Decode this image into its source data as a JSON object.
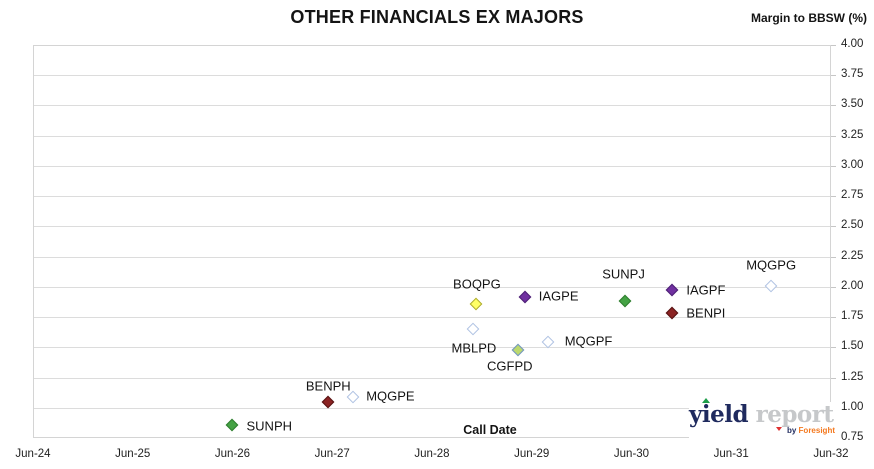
{
  "title": "OTHER FINANCIALS EX MAJORS",
  "chart_data": {
    "type": "scatter",
    "title": "OTHER FINANCIALS EX MAJORS",
    "x_axis": {
      "title": "Call Date",
      "tick_labels": [
        "Jun-24",
        "Jun-25",
        "Jun-26",
        "Jun-27",
        "Jun-28",
        "Jun-29",
        "Jun-30",
        "Jun-31",
        "Jun-32"
      ],
      "range_years": [
        0,
        8
      ]
    },
    "y_axis": {
      "title": "Margin to BBSW (%)",
      "tick_labels": [
        "4.00",
        "3.75",
        "3.50",
        "3.25",
        "3.00",
        "2.75",
        "2.50",
        "2.25",
        "2.00",
        "1.75",
        "1.50",
        "1.25",
        "1.00",
        "0.75"
      ],
      "range": [
        0.75,
        4.0
      ],
      "grid": "horizontal-only",
      "side": "right"
    },
    "series": [
      {
        "label": "SUNPH",
        "call_date_est": "Jun-26",
        "x_years": 1.99,
        "margin_pct": 0.86,
        "marker": {
          "style": "filled",
          "fill": "#44A244",
          "stroke": "#2E7D2E",
          "stroke_w": 1
        },
        "label_pos": {
          "anchor": "left",
          "dx": 15,
          "dy": 1
        }
      },
      {
        "label": "BENPH",
        "call_date_est": "Jun-27",
        "x_years": 2.96,
        "margin_pct": 1.05,
        "marker": {
          "style": "filled",
          "fill": "#8B2323",
          "stroke": "#541212",
          "stroke_w": 1
        },
        "label_pos": {
          "anchor": "center",
          "dx": 0,
          "dy": -16
        }
      },
      {
        "label": "MQGPE",
        "call_date_est": "Sep-27",
        "x_years": 3.21,
        "margin_pct": 1.09,
        "marker": {
          "style": "open",
          "fill": "#FFFFFF",
          "stroke": "#AFC2E3",
          "stroke_w": 1.5
        },
        "label_pos": {
          "anchor": "left",
          "dx": 13,
          "dy": -1
        }
      },
      {
        "label": "MBLPD",
        "call_date_est": "Nov-28",
        "x_years": 4.41,
        "margin_pct": 1.65,
        "marker": {
          "style": "open",
          "fill": "#FFFFFF",
          "stroke": "#AFC2E3",
          "stroke_w": 1.5
        },
        "label_pos": {
          "anchor": "center",
          "dx": 1,
          "dy": 19
        }
      },
      {
        "label": "BOQPG",
        "call_date_est": "Dec-28",
        "x_years": 4.44,
        "margin_pct": 1.86,
        "marker": {
          "style": "filled",
          "fill": "#FFFF66",
          "stroke": "#ABA92F",
          "stroke_w": 1
        },
        "label_pos": {
          "anchor": "center",
          "dx": 1,
          "dy": -20
        }
      },
      {
        "label": "CGFPD",
        "call_date_est": "Apr-29",
        "x_years": 4.86,
        "margin_pct": 1.48,
        "marker": {
          "style": "filled",
          "fill": "#BCD96E",
          "stroke": "#6F92C9",
          "stroke_w": 1
        },
        "label_pos": {
          "anchor": "center",
          "dx": -8,
          "dy": 16
        }
      },
      {
        "label": "IAGPE",
        "call_date_est": "May-29",
        "x_years": 4.93,
        "margin_pct": 1.92,
        "marker": {
          "style": "filled",
          "fill": "#7030A0",
          "stroke": "#4B1F73",
          "stroke_w": 1
        },
        "label_pos": {
          "anchor": "left",
          "dx": 14,
          "dy": -1
        }
      },
      {
        "label": "MQGPF",
        "call_date_est": "Aug-29",
        "x_years": 5.16,
        "margin_pct": 1.54,
        "marker": {
          "style": "open",
          "fill": "#FFFFFF",
          "stroke": "#AFC2E3",
          "stroke_w": 1.5
        },
        "label_pos": {
          "anchor": "left",
          "dx": 17,
          "dy": -1
        }
      },
      {
        "label": "SUNPJ",
        "call_date_est": "May-30",
        "x_years": 5.93,
        "margin_pct": 1.88,
        "marker": {
          "style": "filled",
          "fill": "#44A244",
          "stroke": "#2E7D2E",
          "stroke_w": 1
        },
        "label_pos": {
          "anchor": "center",
          "dx": -1,
          "dy": -27
        }
      },
      {
        "label": "IAGPF",
        "call_date_est": "Nov-30",
        "x_years": 6.41,
        "margin_pct": 1.97,
        "marker": {
          "style": "filled",
          "fill": "#7030A0",
          "stroke": "#4B1F73",
          "stroke_w": 1
        },
        "label_pos": {
          "anchor": "left",
          "dx": 14,
          "dy": 0
        }
      },
      {
        "label": "BENPI",
        "call_date_est": "Nov-30",
        "x_years": 6.41,
        "margin_pct": 1.78,
        "marker": {
          "style": "filled",
          "fill": "#8B2323",
          "stroke": "#541212",
          "stroke_w": 1
        },
        "label_pos": {
          "anchor": "left",
          "dx": 14,
          "dy": 0
        }
      },
      {
        "label": "MQGPG",
        "call_date_est": "Nov-31",
        "x_years": 7.4,
        "margin_pct": 2.01,
        "marker": {
          "style": "open",
          "fill": "#FFFFFF",
          "stroke": "#AFC2E3",
          "stroke_w": 1.5
        },
        "label_pos": {
          "anchor": "center",
          "dx": 0,
          "dy": -21
        }
      }
    ],
    "colors": {
      "gridline": "#DCDCDC",
      "plot_border": "#D4D4D4",
      "text": "#141414"
    }
  },
  "branding": {
    "logo_part1": "yield",
    "logo_part2": "report",
    "tagline_by": "by",
    "tagline_brand": "Foresight",
    "colors": {
      "part1": "#1F2A5E",
      "part2": "#C6C8CA",
      "by": "#1F2A5E",
      "brand": "#F4791F",
      "up_triangle": "#1E9E4A",
      "down_triangle": "#E03131"
    }
  }
}
